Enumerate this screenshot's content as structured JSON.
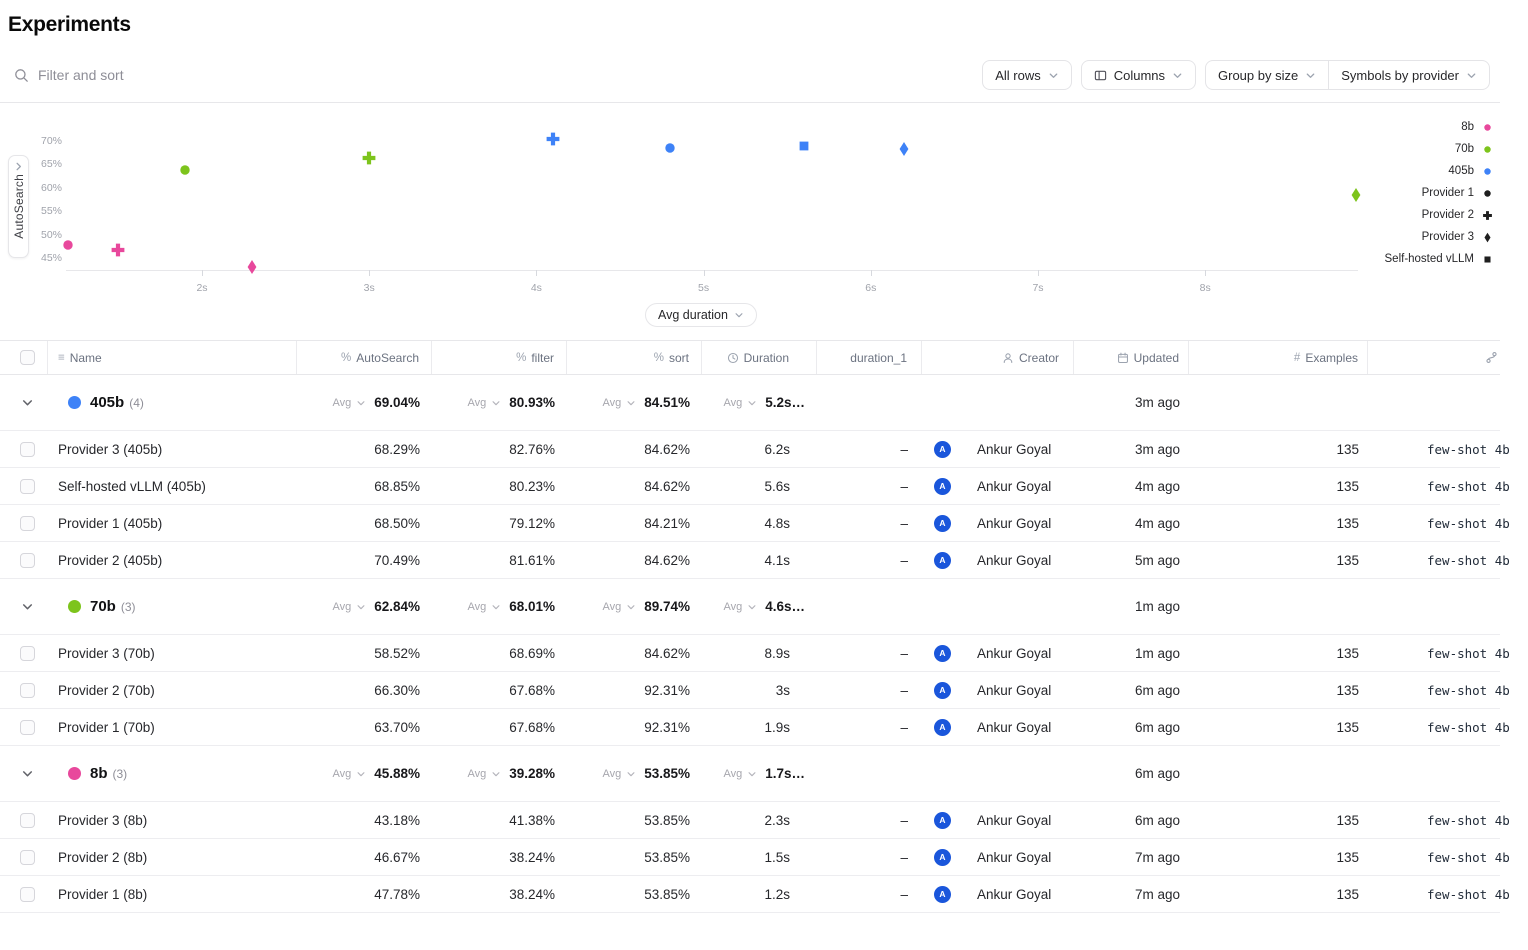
{
  "page": {
    "title": "Experiments"
  },
  "toolbar": {
    "filter_placeholder": "Filter and sort",
    "all_rows": "All rows",
    "columns": "Columns",
    "group_by": "Group by size",
    "symbols_by": "Symbols by provider"
  },
  "chart_data": {
    "type": "scatter",
    "ylabel": "AutoSearch",
    "x_axis_selector": "Avg duration",
    "y_ticks": [
      70,
      65,
      60,
      55,
      50,
      45
    ],
    "y_unit": "%",
    "x_ticks": [
      2,
      3,
      4,
      5,
      6,
      7,
      8
    ],
    "x_unit": "s",
    "points": [
      {
        "label": "Provider 1 (8b)",
        "x_s": 1.2,
        "y_pct": 47.78,
        "symbol": "circle",
        "color": "#E8489C"
      },
      {
        "label": "Provider 2 (8b)",
        "x_s": 1.5,
        "y_pct": 46.67,
        "symbol": "plus",
        "color": "#E8489C"
      },
      {
        "label": "Provider 3 (8b)",
        "x_s": 2.3,
        "y_pct": 43.18,
        "symbol": "diamond",
        "color": "#E8489C"
      },
      {
        "label": "Provider 1 (70b)",
        "x_s": 1.9,
        "y_pct": 63.7,
        "symbol": "circle",
        "color": "#7DC41C"
      },
      {
        "label": "Provider 2 (70b)",
        "x_s": 3.0,
        "y_pct": 66.3,
        "symbol": "plus",
        "color": "#7DC41C"
      },
      {
        "label": "Provider 3 (70b)",
        "x_s": 8.9,
        "y_pct": 58.52,
        "symbol": "diamond",
        "color": "#7DC41C"
      },
      {
        "label": "Provider 2 (405b)",
        "x_s": 4.1,
        "y_pct": 70.49,
        "symbol": "plus",
        "color": "#3E82F7"
      },
      {
        "label": "Provider 1 (405b)",
        "x_s": 4.8,
        "y_pct": 68.5,
        "symbol": "circle",
        "color": "#3E82F7"
      },
      {
        "label": "Self-hosted vLLM (405b)",
        "x_s": 5.6,
        "y_pct": 68.85,
        "symbol": "square",
        "color": "#3E82F7"
      },
      {
        "label": "Provider 3 (405b)",
        "x_s": 6.2,
        "y_pct": 68.29,
        "symbol": "diamond",
        "color": "#3E82F7"
      }
    ],
    "legend": [
      {
        "label": "8b",
        "symbol": "circle",
        "color": "#E8489C"
      },
      {
        "label": "70b",
        "symbol": "circle",
        "color": "#7DC41C"
      },
      {
        "label": "405b",
        "symbol": "circle",
        "color": "#3E82F7"
      },
      {
        "label": "Provider 1",
        "symbol": "circle",
        "color": "#1F1F1F"
      },
      {
        "label": "Provider 2",
        "symbol": "plus",
        "color": "#1F1F1F"
      },
      {
        "label": "Provider 3",
        "symbol": "diamond",
        "color": "#1F1F1F"
      },
      {
        "label": "Self-hosted vLLM",
        "symbol": "square",
        "color": "#1F1F1F"
      }
    ]
  },
  "table": {
    "avg_label": "Avg",
    "headers": {
      "name": "Name",
      "autosearch": "AutoSearch",
      "filter": "filter",
      "sort": "sort",
      "duration": "Duration",
      "duration_1": "duration_1",
      "creator": "Creator",
      "updated": "Updated",
      "examples": "Examples"
    },
    "groups": [
      {
        "label": "405b",
        "count": "(4)",
        "color": "#3E82F7",
        "avg": {
          "autosearch": "69.04%",
          "filter": "80.93%",
          "sort": "84.51%",
          "duration": "5.2s…"
        },
        "updated": "3m ago",
        "rows": [
          {
            "name": "Provider 3 (405b)",
            "autosearch": "68.29%",
            "filter": "82.76%",
            "sort": "84.62%",
            "duration": "6.2s",
            "duration_1": "–",
            "avatar": "A",
            "creator": "Ankur Goyal",
            "updated": "3m ago",
            "examples": "135",
            "meta": "few-shot 4b"
          },
          {
            "name": "Self-hosted vLLM (405b)",
            "autosearch": "68.85%",
            "filter": "80.23%",
            "sort": "84.62%",
            "duration": "5.6s",
            "duration_1": "–",
            "avatar": "A",
            "creator": "Ankur Goyal",
            "updated": "4m ago",
            "examples": "135",
            "meta": "few-shot 4b"
          },
          {
            "name": "Provider 1 (405b)",
            "autosearch": "68.50%",
            "filter": "79.12%",
            "sort": "84.21%",
            "duration": "4.8s",
            "duration_1": "–",
            "avatar": "A",
            "creator": "Ankur Goyal",
            "updated": "4m ago",
            "examples": "135",
            "meta": "few-shot 4b"
          },
          {
            "name": "Provider 2 (405b)",
            "autosearch": "70.49%",
            "filter": "81.61%",
            "sort": "84.62%",
            "duration": "4.1s",
            "duration_1": "–",
            "avatar": "A",
            "creator": "Ankur Goyal",
            "updated": "5m ago",
            "examples": "135",
            "meta": "few-shot 4b"
          }
        ]
      },
      {
        "label": "70b",
        "count": "(3)",
        "color": "#7DC41C",
        "avg": {
          "autosearch": "62.84%",
          "filter": "68.01%",
          "sort": "89.74%",
          "duration": "4.6s…"
        },
        "updated": "1m ago",
        "rows": [
          {
            "name": "Provider 3 (70b)",
            "autosearch": "58.52%",
            "filter": "68.69%",
            "sort": "84.62%",
            "duration": "8.9s",
            "duration_1": "–",
            "avatar": "A",
            "creator": "Ankur Goyal",
            "updated": "1m ago",
            "examples": "135",
            "meta": "few-shot 4b"
          },
          {
            "name": "Provider 2 (70b)",
            "autosearch": "66.30%",
            "filter": "67.68%",
            "sort": "92.31%",
            "duration": "3s",
            "duration_1": "–",
            "avatar": "A",
            "creator": "Ankur Goyal",
            "updated": "6m ago",
            "examples": "135",
            "meta": "few-shot 4b"
          },
          {
            "name": "Provider 1 (70b)",
            "autosearch": "63.70%",
            "filter": "67.68%",
            "sort": "92.31%",
            "duration": "1.9s",
            "duration_1": "–",
            "avatar": "A",
            "creator": "Ankur Goyal",
            "updated": "6m ago",
            "examples": "135",
            "meta": "few-shot 4b"
          }
        ]
      },
      {
        "label": "8b",
        "count": "(3)",
        "color": "#E8489C",
        "avg": {
          "autosearch": "45.88%",
          "filter": "39.28%",
          "sort": "53.85%",
          "duration": "1.7s…"
        },
        "updated": "6m ago",
        "rows": [
          {
            "name": "Provider 3 (8b)",
            "autosearch": "43.18%",
            "filter": "41.38%",
            "sort": "53.85%",
            "duration": "2.3s",
            "duration_1": "–",
            "avatar": "A",
            "creator": "Ankur Goyal",
            "updated": "6m ago",
            "examples": "135",
            "meta": "few-shot 4b"
          },
          {
            "name": "Provider 2 (8b)",
            "autosearch": "46.67%",
            "filter": "38.24%",
            "sort": "53.85%",
            "duration": "1.5s",
            "duration_1": "–",
            "avatar": "A",
            "creator": "Ankur Goyal",
            "updated": "7m ago",
            "examples": "135",
            "meta": "few-shot 4b"
          },
          {
            "name": "Provider 1 (8b)",
            "autosearch": "47.78%",
            "filter": "38.24%",
            "sort": "53.85%",
            "duration": "1.2s",
            "duration_1": "–",
            "avatar": "A",
            "creator": "Ankur Goyal",
            "updated": "7m ago",
            "examples": "135",
            "meta": "few-shot 4b"
          }
        ]
      }
    ]
  }
}
